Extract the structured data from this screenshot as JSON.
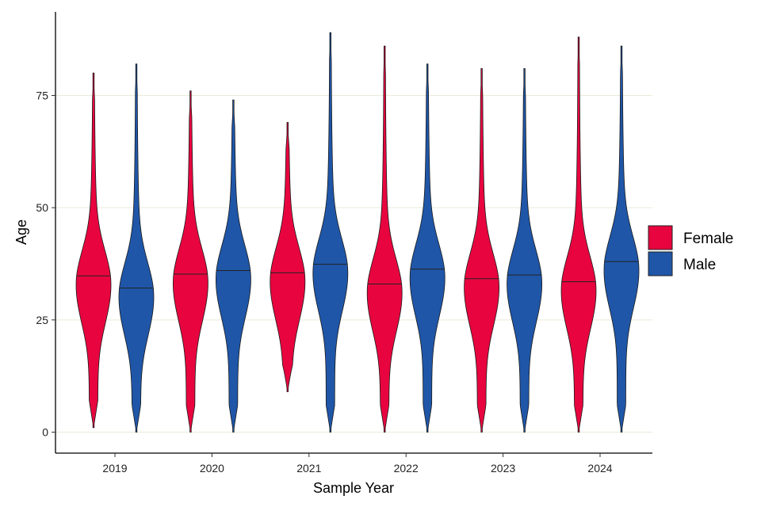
{
  "chart_data": {
    "type": "violin",
    "xlabel": "Sample Year",
    "ylabel": "Age",
    "categories": [
      "2019",
      "2020",
      "2021",
      "2022",
      "2023",
      "2024"
    ],
    "yticks": [
      0,
      25,
      50,
      75
    ],
    "ylim": [
      -4,
      93
    ],
    "grid": "horizontal major lines",
    "legend": {
      "position": "right",
      "entries": [
        "Female",
        "Male"
      ]
    },
    "series": [
      {
        "name": "Female",
        "color": "#E8053F",
        "violins": [
          {
            "year": "2019",
            "min": 1,
            "max": 80,
            "median": 34.8
          },
          {
            "year": "2020",
            "min": 0,
            "max": 76,
            "median": 35.2
          },
          {
            "year": "2021",
            "min": 9,
            "max": 69,
            "median": 35.5
          },
          {
            "year": "2022",
            "min": 0,
            "max": 86,
            "median": 33.0
          },
          {
            "year": "2023",
            "min": 0,
            "max": 81,
            "median": 34.2
          },
          {
            "year": "2024",
            "min": 0,
            "max": 88,
            "median": 33.5
          }
        ]
      },
      {
        "name": "Male",
        "color": "#1F56A8",
        "violins": [
          {
            "year": "2019",
            "min": 0,
            "max": 82,
            "median": 32.1
          },
          {
            "year": "2020",
            "min": 0,
            "max": 74,
            "median": 36.0
          },
          {
            "year": "2021",
            "min": 0,
            "max": 89,
            "median": 37.4
          },
          {
            "year": "2022",
            "min": 0,
            "max": 82,
            "median": 36.3
          },
          {
            "year": "2023",
            "min": 0,
            "max": 81,
            "median": 35.0
          },
          {
            "year": "2024",
            "min": 0,
            "max": 86,
            "median": 38.0
          }
        ]
      }
    ]
  }
}
